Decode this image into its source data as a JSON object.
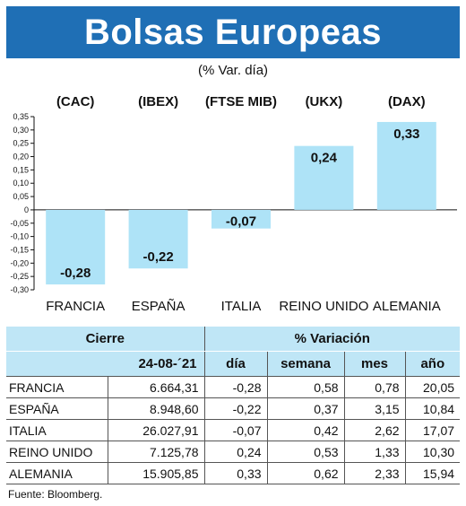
{
  "header": {
    "title": "Bolsas Europeas"
  },
  "subtitle": "(% Var. día)",
  "chart_data": {
    "type": "bar",
    "title": "Bolsas Europeas",
    "subtitle": "(% Var. día)",
    "categories": [
      "FRANCIA",
      "ESPAÑA",
      "ITALIA",
      "REINO UNIDO",
      "ALEMANIA"
    ],
    "index_labels": [
      "(CAC)",
      "(IBEX)",
      "(FTSE MIB)",
      "(UKX)",
      "(DAX)"
    ],
    "values": [
      -0.28,
      -0.22,
      -0.07,
      0.24,
      0.33
    ],
    "data_labels": [
      "-0,28",
      "-0,22",
      "-0,07",
      "0,24",
      "0,33"
    ],
    "ylim": [
      -0.3,
      0.35
    ],
    "yticks": [
      0.35,
      0.3,
      0.25,
      0.2,
      0.15,
      0.1,
      0.05,
      0,
      -0.05,
      -0.1,
      -0.15,
      -0.2,
      -0.25,
      -0.3
    ],
    "ytick_labels": [
      "0,35",
      "0,30",
      "0,25",
      "0,20",
      "0,15",
      "0,10",
      "0,05",
      "0",
      "-0,05",
      "-0,10",
      "-0,15",
      "-0,20",
      "-0,25",
      "-0,30"
    ],
    "grid": false,
    "bar_color": "#aee3f7"
  },
  "table": {
    "header_cierre": "Cierre",
    "header_variacion": "% Variación",
    "header_date": "24-08-´21",
    "col_dia": "día",
    "col_semana": "semana",
    "col_mes": "mes",
    "col_anio": "año",
    "rows": [
      {
        "name": "FRANCIA",
        "cierre": "6.664,31",
        "dia": "-0,28",
        "semana": "0,58",
        "mes": "0,78",
        "anio": "20,05"
      },
      {
        "name": "ESPAÑA",
        "cierre": "8.948,60",
        "dia": "-0,22",
        "semana": "0,37",
        "mes": "3,15",
        "anio": "10,84"
      },
      {
        "name": "ITALIA",
        "cierre": "26.027,91",
        "dia": "-0,07",
        "semana": "0,42",
        "mes": "2,62",
        "anio": "17,07"
      },
      {
        "name": "REINO UNIDO",
        "cierre": "7.125,78",
        "dia": "0,24",
        "semana": "0,53",
        "mes": "1,33",
        "anio": "10,30"
      },
      {
        "name": "ALEMANIA",
        "cierre": "15.905,85",
        "dia": "0,33",
        "semana": "0,62",
        "mes": "2,33",
        "anio": "15,94"
      }
    ]
  },
  "source": "Fuente: Bloomberg.",
  "colors": {
    "header_bg": "#1f6fb5",
    "table_header_bg": "#bfe6f6",
    "bar": "#aee3f7"
  }
}
